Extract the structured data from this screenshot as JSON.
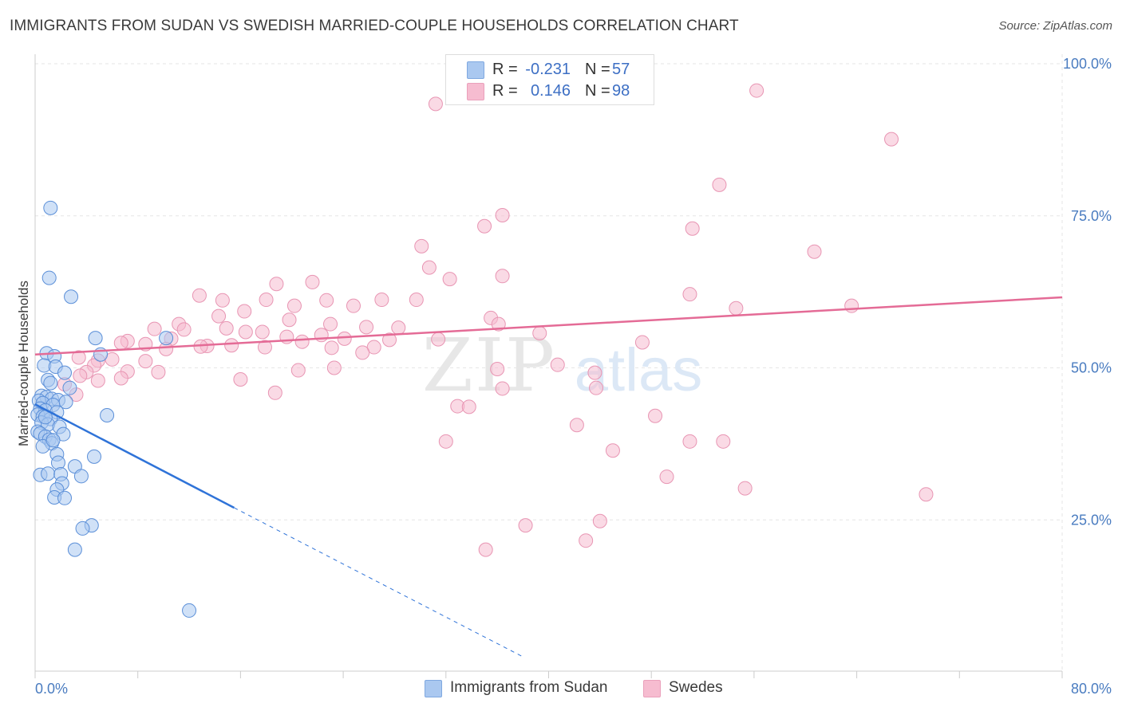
{
  "title": "IMMIGRANTS FROM SUDAN VS SWEDISH MARRIED-COUPLE HOUSEHOLDS CORRELATION CHART",
  "source": "Source: ZipAtlas.com",
  "watermark": {
    "zip": "ZIP",
    "atlas": "atlas"
  },
  "legend_top": {
    "rows": [
      {
        "r_label": "R =",
        "r_value": "-0.231",
        "n_label": "N =",
        "n_value": "57",
        "color": "#aac8f0"
      },
      {
        "r_label": "R =",
        "r_value": "0.146",
        "n_label": "N =",
        "n_value": "98",
        "color": "#f6bcd0"
      }
    ]
  },
  "legend_bottom": {
    "items": [
      {
        "label": "Immigrants from Sudan",
        "color": "#aac8f0"
      },
      {
        "label": "Swedes",
        "color": "#f6bcd0"
      }
    ]
  },
  "chart_data": {
    "type": "scatter",
    "ylabel": "Married-couple Households",
    "xlim": [
      0,
      80
    ],
    "ylim": [
      0,
      104
    ],
    "x_ticks": {
      "min_label": "0.0%",
      "max_label": "80.0%"
    },
    "y_ticks": [
      {
        "value": 100,
        "label": "100.0%"
      },
      {
        "value": 75,
        "label": "75.0%"
      },
      {
        "value": 50,
        "label": "50.0%"
      },
      {
        "value": 25,
        "label": "25.0%"
      }
    ],
    "colors": {
      "sudan_fill": "#aac8f0",
      "sudan_stroke": "#5b8fd8",
      "sudan_line": "#2f73d8",
      "swedes_fill": "#f6bcd0",
      "swedes_stroke": "#e895b3",
      "swedes_line": "#e46b96",
      "grid": "#e6e6e6",
      "axis": "#cccccc"
    },
    "series": [
      {
        "name": "Immigrants from Sudan",
        "trend": {
          "x0": 0,
          "y0": 44.0,
          "x1": 15.5,
          "y1": 27.0,
          "dash_x1": 37.9,
          "dash_y1": 2.6
        },
        "points": [
          [
            1.2,
            76.3
          ],
          [
            1.1,
            64.8
          ],
          [
            2.8,
            61.7
          ],
          [
            4.7,
            54.9
          ],
          [
            10.2,
            54.9
          ],
          [
            0.9,
            52.4
          ],
          [
            1.5,
            51.9
          ],
          [
            5.1,
            52.2
          ],
          [
            0.7,
            50.4
          ],
          [
            1.6,
            50.2
          ],
          [
            2.3,
            49.2
          ],
          [
            1.0,
            48.0
          ],
          [
            1.2,
            47.5
          ],
          [
            2.7,
            46.7
          ],
          [
            0.5,
            45.4
          ],
          [
            0.9,
            45.2
          ],
          [
            1.3,
            44.9
          ],
          [
            0.3,
            44.6
          ],
          [
            0.6,
            44.2
          ],
          [
            1.8,
            44.7
          ],
          [
            1.4,
            43.9
          ],
          [
            0.4,
            43.3
          ],
          [
            0.8,
            43.0
          ],
          [
            1.7,
            42.7
          ],
          [
            0.2,
            42.3
          ],
          [
            0.6,
            42.0
          ],
          [
            1.2,
            41.6
          ],
          [
            5.6,
            42.2
          ],
          [
            0.5,
            41.0
          ],
          [
            1.0,
            40.7
          ],
          [
            1.9,
            40.3
          ],
          [
            0.2,
            39.5
          ],
          [
            0.4,
            39.2
          ],
          [
            0.8,
            38.7
          ],
          [
            2.2,
            39.1
          ],
          [
            1.1,
            38.2
          ],
          [
            1.3,
            37.6
          ],
          [
            0.6,
            37.1
          ],
          [
            1.7,
            35.8
          ],
          [
            4.6,
            35.4
          ],
          [
            1.8,
            34.4
          ],
          [
            3.1,
            33.8
          ],
          [
            0.4,
            32.4
          ],
          [
            1.0,
            32.6
          ],
          [
            2.0,
            32.5
          ],
          [
            3.6,
            32.2
          ],
          [
            2.1,
            31.0
          ],
          [
            1.7,
            30.0
          ],
          [
            1.5,
            28.7
          ],
          [
            2.3,
            28.6
          ],
          [
            4.4,
            24.1
          ],
          [
            3.7,
            23.6
          ],
          [
            3.1,
            20.1
          ],
          [
            12.0,
            10.1
          ],
          [
            0.8,
            41.9
          ],
          [
            2.4,
            44.4
          ],
          [
            1.4,
            38.1
          ]
        ]
      },
      {
        "name": "Swedes",
        "trend": {
          "x0": 0,
          "y0": 52.2,
          "x1": 80,
          "y1": 61.6
        },
        "points": [
          [
            43.9,
            100.1
          ],
          [
            34.2,
            100.1
          ],
          [
            56.2,
            95.6
          ],
          [
            31.2,
            93.4
          ],
          [
            66.7,
            87.6
          ],
          [
            53.3,
            80.1
          ],
          [
            36.4,
            75.1
          ],
          [
            35.0,
            73.3
          ],
          [
            51.2,
            72.9
          ],
          [
            30.1,
            70.0
          ],
          [
            60.7,
            69.1
          ],
          [
            30.7,
            66.5
          ],
          [
            36.4,
            65.1
          ],
          [
            32.3,
            64.6
          ],
          [
            21.6,
            64.1
          ],
          [
            18.8,
            63.8
          ],
          [
            51.0,
            62.1
          ],
          [
            12.8,
            61.9
          ],
          [
            18.0,
            61.2
          ],
          [
            27.0,
            61.2
          ],
          [
            29.7,
            61.2
          ],
          [
            22.7,
            61.1
          ],
          [
            14.6,
            61.1
          ],
          [
            20.2,
            60.2
          ],
          [
            24.8,
            60.2
          ],
          [
            63.6,
            60.2
          ],
          [
            54.6,
            59.8
          ],
          [
            16.3,
            59.3
          ],
          [
            14.3,
            58.5
          ],
          [
            19.8,
            57.9
          ],
          [
            35.5,
            58.2
          ],
          [
            11.2,
            57.2
          ],
          [
            23.0,
            57.2
          ],
          [
            36.1,
            57.2
          ],
          [
            25.8,
            56.7
          ],
          [
            28.3,
            56.6
          ],
          [
            14.9,
            56.5
          ],
          [
            9.3,
            56.4
          ],
          [
            11.6,
            56.3
          ],
          [
            16.4,
            55.9
          ],
          [
            17.7,
            55.9
          ],
          [
            39.3,
            55.7
          ],
          [
            22.3,
            55.4
          ],
          [
            19.6,
            55.1
          ],
          [
            24.1,
            54.8
          ],
          [
            10.6,
            54.8
          ],
          [
            31.4,
            54.7
          ],
          [
            27.6,
            54.6
          ],
          [
            7.2,
            54.4
          ],
          [
            20.8,
            54.3
          ],
          [
            6.7,
            54.1
          ],
          [
            13.4,
            53.6
          ],
          [
            8.6,
            53.9
          ],
          [
            15.3,
            53.7
          ],
          [
            12.9,
            53.5
          ],
          [
            17.9,
            53.4
          ],
          [
            23.1,
            53.3
          ],
          [
            10.2,
            53.1
          ],
          [
            26.4,
            53.4
          ],
          [
            25.5,
            52.5
          ],
          [
            3.4,
            51.7
          ],
          [
            6.0,
            51.4
          ],
          [
            4.9,
            51.2
          ],
          [
            8.6,
            51.1
          ],
          [
            4.6,
            50.4
          ],
          [
            40.7,
            50.5
          ],
          [
            23.3,
            50.0
          ],
          [
            36.0,
            49.8
          ],
          [
            20.5,
            49.6
          ],
          [
            4.0,
            49.3
          ],
          [
            7.2,
            49.4
          ],
          [
            43.6,
            49.2
          ],
          [
            9.6,
            49.3
          ],
          [
            3.5,
            48.7
          ],
          [
            6.7,
            48.3
          ],
          [
            16.0,
            48.1
          ],
          [
            4.9,
            47.9
          ],
          [
            2.3,
            47.3
          ],
          [
            43.7,
            46.7
          ],
          [
            36.4,
            46.6
          ],
          [
            18.7,
            45.9
          ],
          [
            3.2,
            45.6
          ],
          [
            32.9,
            43.7
          ],
          [
            33.8,
            43.6
          ],
          [
            48.3,
            42.1
          ],
          [
            42.2,
            40.6
          ],
          [
            32.0,
            37.9
          ],
          [
            51.0,
            37.9
          ],
          [
            53.6,
            37.9
          ],
          [
            45.0,
            36.4
          ],
          [
            49.2,
            32.1
          ],
          [
            55.3,
            30.2
          ],
          [
            69.4,
            29.2
          ],
          [
            38.2,
            24.1
          ],
          [
            35.1,
            20.1
          ],
          [
            42.9,
            21.6
          ],
          [
            44.0,
            24.8
          ],
          [
            47.3,
            54.2
          ]
        ]
      }
    ]
  }
}
